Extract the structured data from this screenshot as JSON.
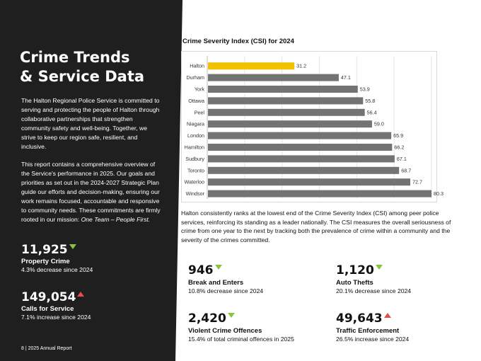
{
  "panel": {
    "title_line1": "Crime Trends",
    "title_line2": "& Service Data",
    "intro_p1": "The Halton Regional Police Service is committed to serving and protecting the people of Halton through collaborative partnerships that strengthen community safety and well-being. Together, we strive to keep our region safe, resilient, and inclusive.",
    "intro_p2": "This report contains a comprehensive overview of the Service's performance in 2025. Our goals and priorities as set out in the 2024-2027 Strategic Plan guide our efforts and decision-making, ensuring our work remains focused, accountable and responsive to community needs. These commitments are firmly rooted in our mission:",
    "mission": "One Team – People First."
  },
  "left_stats": [
    {
      "value": "11,925",
      "label": "Property Crime",
      "sub": "4.3% decrease since 2024",
      "trend": "down"
    },
    {
      "value": "149,054",
      "label": "Calls for Service",
      "sub": "7.1% increase since 2024",
      "trend": "up"
    }
  ],
  "footer": {
    "text": "8 | 2025 Annual Report"
  },
  "chart_data": {
    "type": "bar",
    "orientation": "horizontal",
    "title": "Crime Severity Index (CSI) for 2024",
    "categories": [
      "Halton",
      "Durham",
      "York",
      "Ottawa",
      "Peel",
      "Niagara",
      "London",
      "Hamilton",
      "Sudbury",
      "Toronto",
      "Waterloo",
      "Windsor"
    ],
    "values": [
      31.2,
      47.1,
      53.9,
      55.8,
      56.4,
      59.0,
      65.9,
      66.2,
      67.1,
      68.7,
      72.7,
      80.3
    ],
    "value_labels": [
      "31.2",
      "47.1",
      "53.9",
      "55.8",
      "56.4",
      "59.0",
      "65.9",
      "66.2",
      "67.1",
      "68.7",
      "72.7",
      "80.3"
    ],
    "xlim": [
      0,
      80.3
    ],
    "grid": true,
    "legend": "none",
    "highlight_color": "#f2c200",
    "bar_color": "#737373"
  },
  "chart_description": "Halton consistently ranks at the lowest end of the Crime Severity Index (CSI) among peer police services, reinforcing its standing as a leader nationally. The CSI measures the overall seriousness of crime from one year to the next by tracking both the prevalence of crime within a community and the severity of the crimes committed.",
  "right_stats": [
    {
      "value": "946",
      "label": "Break and Enters",
      "sub": "10.8% decrease since 2024",
      "trend": "down"
    },
    {
      "value": "1,120",
      "label": "Auto Thefts",
      "sub": "20.1% decrease since 2024",
      "trend": "down"
    },
    {
      "value": "2,420",
      "label": "Violent Crime Offences",
      "sub": "15.4% of total criminal offences in 2025",
      "trend": "down"
    },
    {
      "value": "49,643",
      "label": "Traffic Enforcement",
      "sub": "26.5% increase since 2024",
      "trend": "up"
    }
  ]
}
